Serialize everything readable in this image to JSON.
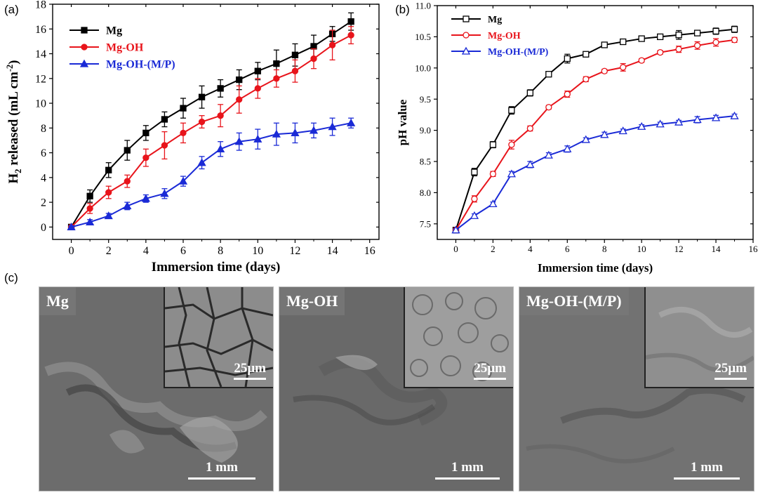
{
  "panels": {
    "a": "(a)",
    "b": "(b)",
    "c": "(c)"
  },
  "chart_data": [
    {
      "type": "line",
      "id": "a",
      "xlabel": "Immersion time (days)",
      "ylabel_main": "H",
      "ylabel_sub": "2",
      "ylabel_rest": " released (mL cm",
      "ylabel_sup": "-2",
      "ylabel_end": ")",
      "xlim": [
        -1,
        16.5
      ],
      "ylim": [
        -1,
        18
      ],
      "xticks": [
        0,
        2,
        4,
        6,
        8,
        10,
        12,
        14,
        16
      ],
      "yticks": [
        0,
        2,
        4,
        6,
        8,
        10,
        12,
        14,
        16,
        18
      ],
      "legend_position": "top-left",
      "x": [
        0,
        1,
        2,
        3,
        4,
        5,
        6,
        7,
        8,
        9,
        10,
        11,
        12,
        13,
        14,
        15
      ],
      "series": [
        {
          "name": "Mg",
          "color": "#000000",
          "marker": "square-filled",
          "values": [
            0,
            2.5,
            4.6,
            6.2,
            7.6,
            8.7,
            9.6,
            10.5,
            11.2,
            11.9,
            12.6,
            13.2,
            13.9,
            14.6,
            15.6,
            16.6
          ],
          "errors": [
            0.1,
            0.5,
            0.6,
            0.8,
            0.6,
            0.6,
            0.8,
            0.9,
            0.7,
            0.8,
            0.7,
            1.1,
            0.9,
            0.9,
            0.6,
            0.7
          ]
        },
        {
          "name": "Mg-OH",
          "color": "#e8141b",
          "marker": "circle-filled",
          "values": [
            0,
            1.5,
            2.8,
            3.7,
            5.6,
            6.6,
            7.6,
            8.5,
            9.0,
            10.3,
            11.2,
            12.0,
            12.6,
            13.6,
            14.7,
            15.5
          ],
          "errors": [
            0.1,
            0.4,
            0.5,
            0.5,
            0.7,
            1.1,
            0.8,
            0.5,
            0.9,
            1.1,
            0.8,
            0.7,
            0.9,
            0.8,
            1.2,
            0.7
          ]
        },
        {
          "name": "Mg-OH-(M/P)",
          "color": "#1a2ad6",
          "marker": "triangle-filled",
          "values": [
            0,
            0.4,
            0.9,
            1.7,
            2.3,
            2.7,
            3.7,
            5.2,
            6.3,
            6.9,
            7.1,
            7.5,
            7.6,
            7.8,
            8.1,
            8.4
          ],
          "errors": [
            0.1,
            0.2,
            0.2,
            0.3,
            0.3,
            0.4,
            0.4,
            0.5,
            0.6,
            0.7,
            0.8,
            0.9,
            0.8,
            0.6,
            0.7,
            0.4
          ]
        }
      ]
    },
    {
      "type": "line",
      "id": "b",
      "xlabel": "Immersion time (days)",
      "ylabel": "pH value",
      "xlim": [
        -1,
        16
      ],
      "ylim": [
        7.25,
        11.0
      ],
      "xticks": [
        0,
        2,
        4,
        6,
        8,
        10,
        12,
        14,
        16
      ],
      "yticks": [
        7.5,
        8.0,
        8.5,
        9.0,
        9.5,
        10.0,
        10.5,
        11.0
      ],
      "legend_position": "top-left",
      "x": [
        0,
        1,
        2,
        3,
        4,
        5,
        6,
        7,
        8,
        9,
        10,
        11,
        12,
        13,
        14,
        15
      ],
      "series": [
        {
          "name": "Mg",
          "color": "#000000",
          "marker": "square-open",
          "values": [
            7.4,
            8.33,
            8.77,
            9.32,
            9.6,
            9.9,
            10.15,
            10.22,
            10.37,
            10.42,
            10.47,
            10.5,
            10.53,
            10.56,
            10.59,
            10.62
          ],
          "errors": [
            0.02,
            0.06,
            0.05,
            0.06,
            0.05,
            0.04,
            0.07,
            0.03,
            0.03,
            0.02,
            0.04,
            0.03,
            0.07,
            0.04,
            0.05,
            0.05
          ]
        },
        {
          "name": "Mg-OH",
          "color": "#e8141b",
          "marker": "circle-open",
          "values": [
            7.4,
            7.9,
            8.3,
            8.77,
            9.03,
            9.37,
            9.58,
            9.82,
            9.95,
            10.01,
            10.12,
            10.25,
            10.3,
            10.36,
            10.41,
            10.45
          ],
          "errors": [
            0.02,
            0.05,
            0.04,
            0.07,
            0.04,
            0.03,
            0.05,
            0.04,
            0.03,
            0.06,
            0.03,
            0.03,
            0.05,
            0.06,
            0.06,
            0.04
          ]
        },
        {
          "name": "Mg-OH-(M/P)",
          "color": "#1a2ad6",
          "marker": "triangle-open",
          "values": [
            7.4,
            7.63,
            7.82,
            8.3,
            8.45,
            8.6,
            8.7,
            8.85,
            8.93,
            8.99,
            9.06,
            9.1,
            9.13,
            9.17,
            9.2,
            9.23
          ],
          "errors": [
            0.02,
            0.03,
            0.03,
            0.04,
            0.05,
            0.04,
            0.05,
            0.03,
            0.04,
            0.03,
            0.03,
            0.03,
            0.03,
            0.05,
            0.04,
            0.03
          ]
        }
      ]
    }
  ],
  "sem": [
    {
      "label": "Mg",
      "inset_scale": "25μm",
      "main_scale": "1 mm",
      "bg": "#6e6e6e"
    },
    {
      "label": "Mg-OH",
      "inset_scale": "25μm",
      "main_scale": "1 mm",
      "bg": "#6a6a6a"
    },
    {
      "label": "Mg-OH-(M/P)",
      "inset_scale": "25μm",
      "main_scale": "1 mm",
      "bg": "#727272"
    }
  ]
}
